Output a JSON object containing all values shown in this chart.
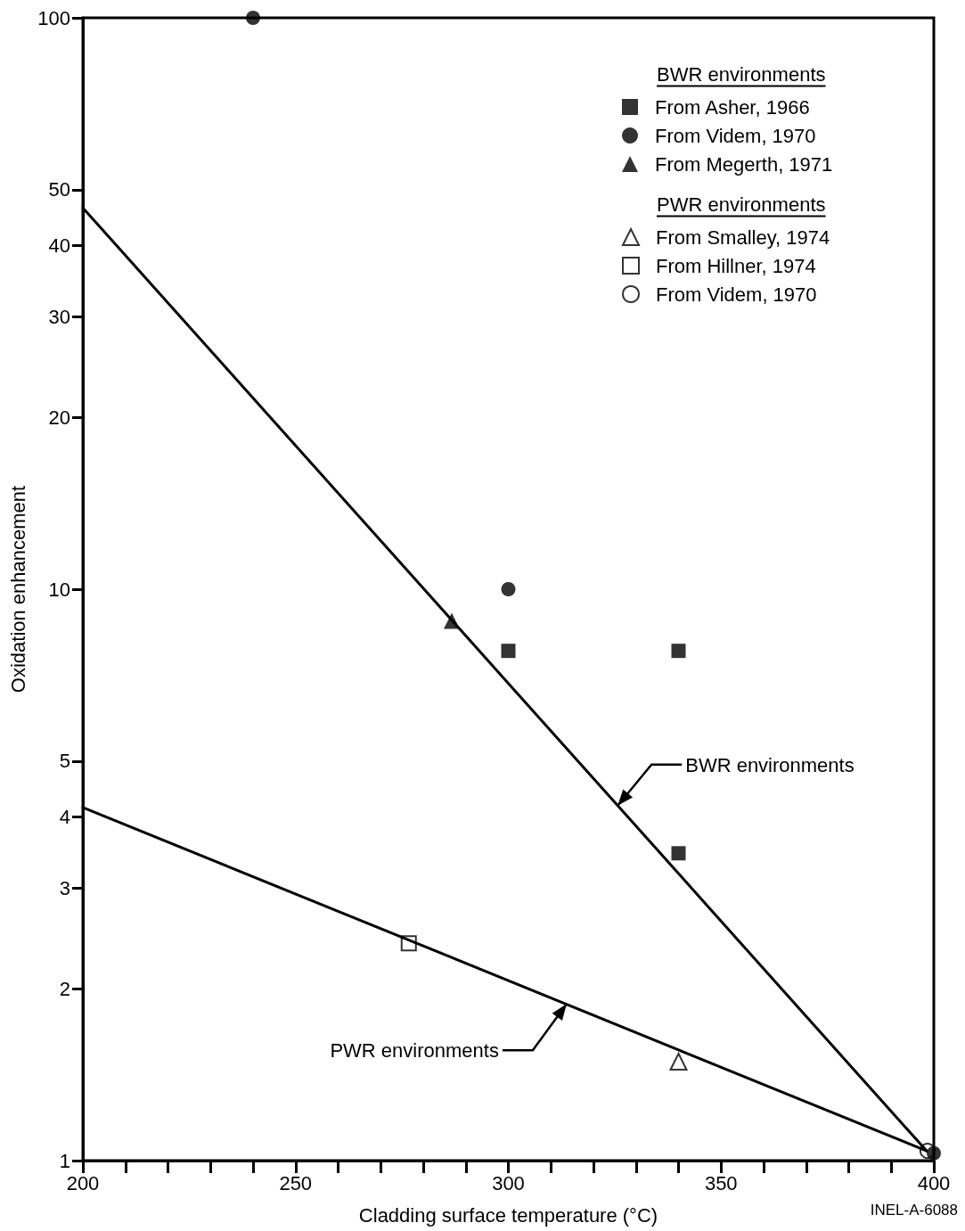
{
  "chart_data": {
    "type": "scatter",
    "xlabel": "Cladding surface temperature (°C)",
    "ylabel": "Oxidation enhancement",
    "log": "y",
    "xlim": [
      200,
      400
    ],
    "ylim": [
      1,
      100
    ],
    "xticks": [
      200,
      {
        "value": 210,
        "label": null
      },
      {
        "value": 220,
        "label": null
      },
      {
        "value": 230,
        "label": null
      },
      {
        "value": 240,
        "label": null
      },
      250,
      {
        "value": 260,
        "label": null
      },
      {
        "value": 270,
        "label": null
      },
      {
        "value": 280,
        "label": null
      },
      {
        "value": 290,
        "label": null
      },
      300,
      {
        "value": 310,
        "label": null
      },
      {
        "value": 320,
        "label": null
      },
      {
        "value": 330,
        "label": null
      },
      {
        "value": 340,
        "label": null
      },
      350,
      {
        "value": 360,
        "label": null
      },
      {
        "value": 370,
        "label": null
      },
      {
        "value": 380,
        "label": null
      },
      {
        "value": 390,
        "label": null
      },
      400
    ],
    "yticks": [
      1,
      2,
      3,
      4,
      5,
      10,
      20,
      30,
      40,
      50,
      100
    ],
    "grid": false,
    "legend": "top right",
    "series": [
      {
        "name": "From Asher, 1966",
        "color": "#000000",
        "marker": "square",
        "x": [
          300,
          340,
          340
        ],
        "values": [
          7.8,
          7.8,
          3.45
        ]
      },
      {
        "name": "From Videm, 1970",
        "color": "#000000",
        "marker": "circle",
        "x": [
          240,
          300,
          400
        ],
        "values": [
          100,
          10,
          1.03
        ]
      },
      {
        "name": "From Megerth, 1971",
        "color": "#000000",
        "marker": "triangle",
        "x": [
          286.7
        ],
        "values": [
          8.8
        ]
      },
      {
        "name": "From Smalley, 1974",
        "color": "#000000",
        "marker": "triangle-open",
        "x": [
          340
        ],
        "values": [
          1.49
        ]
      },
      {
        "name": "From Hillner, 1974",
        "color": "#000000",
        "marker": "square-open",
        "x": [
          276.6
        ],
        "values": [
          2.4
        ]
      },
      {
        "name": "From Videm, 1970",
        "color": "#000000",
        "marker": "circle-open",
        "x": [
          398.5
        ],
        "values": [
          1.04
        ]
      },
      {
        "type": "line",
        "color": "#000000",
        "marker": "none",
        "x": [
          200,
          398.3
        ],
        "values": [
          46.5,
          1.04
        ]
      },
      {
        "type": "line",
        "color": "#000000",
        "marker": "none",
        "x": [
          200,
          398.3
        ],
        "values": [
          4.15,
          1.04
        ]
      }
    ],
    "annotations": [
      "BWR environments",
      "PWR environments",
      {
        "text": "BWR environments",
        "x": 325.7,
        "y": 4.18
      },
      {
        "text": "PWR environments",
        "x": 313.7,
        "y": 1.88
      },
      "INEL-A-6088"
    ]
  }
}
